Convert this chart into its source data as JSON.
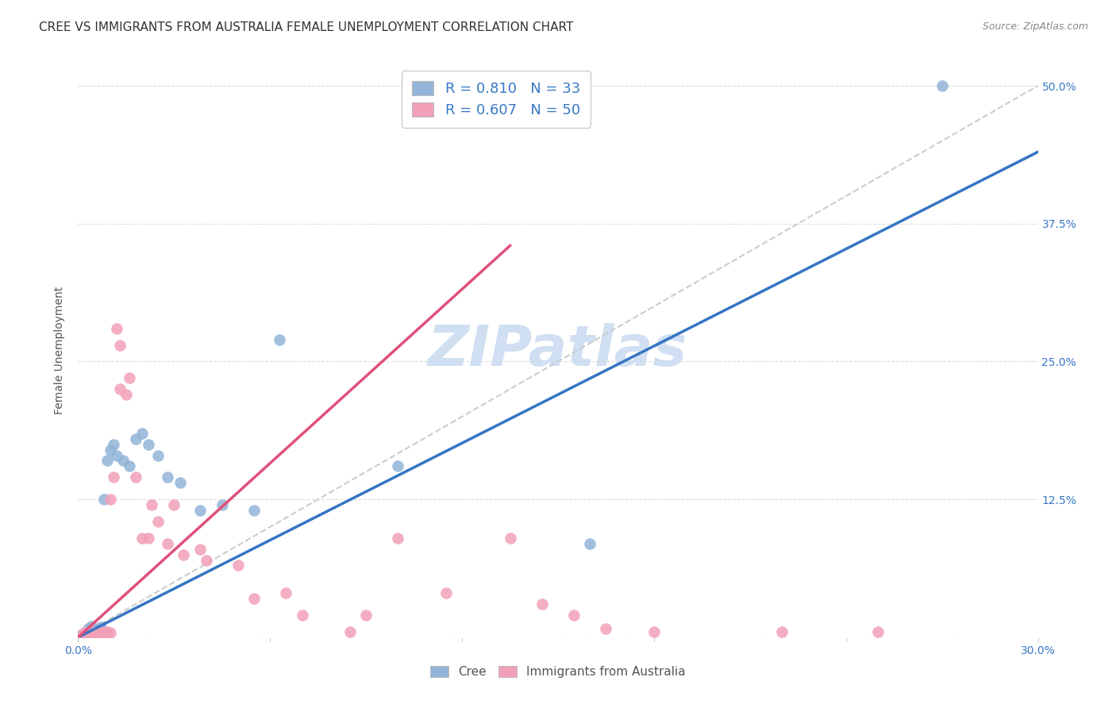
{
  "title": "CREE VS IMMIGRANTS FROM AUSTRALIA FEMALE UNEMPLOYMENT CORRELATION CHART",
  "source": "Source: ZipAtlas.com",
  "ylabel_label": "Female Unemployment",
  "x_min": 0.0,
  "x_max": 0.3,
  "y_min": 0.0,
  "y_max": 0.52,
  "x_ticks": [
    0.0,
    0.06,
    0.12,
    0.18,
    0.24,
    0.3
  ],
  "x_tick_labels": [
    "0.0%",
    "",
    "",
    "",
    "",
    "30.0%"
  ],
  "y_ticks": [
    0.0,
    0.125,
    0.25,
    0.375,
    0.5
  ],
  "y_tick_labels": [
    "",
    "12.5%",
    "25.0%",
    "37.5%",
    "50.0%"
  ],
  "cree_color": "#92b4d8",
  "australia_color": "#f2a0b8",
  "cree_line_color": "#3575c3",
  "australia_line_color": "#e0507a",
  "diagonal_color": "#cccccc",
  "watermark_color": "#c8daf0",
  "R_cree": "0.810",
  "N_cree": 33,
  "R_australia": "0.607",
  "N_australia": 50,
  "cree_line": [
    [
      0.0,
      0.0
    ],
    [
      0.3,
      0.44
    ]
  ],
  "australia_line": [
    [
      0.0,
      0.0
    ],
    [
      0.135,
      0.355
    ]
  ],
  "diagonal_line": [
    [
      0.0,
      0.0
    ],
    [
      0.3,
      0.5
    ]
  ],
  "cree_points": [
    [
      0.001,
      0.002
    ],
    [
      0.002,
      0.003
    ],
    [
      0.002,
      0.001
    ],
    [
      0.003,
      0.005
    ],
    [
      0.003,
      0.008
    ],
    [
      0.004,
      0.003
    ],
    [
      0.004,
      0.01
    ],
    [
      0.005,
      0.005
    ],
    [
      0.005,
      0.002
    ],
    [
      0.006,
      0.004
    ],
    [
      0.006,
      0.007
    ],
    [
      0.007,
      0.003
    ],
    [
      0.007,
      0.009
    ],
    [
      0.008,
      0.125
    ],
    [
      0.009,
      0.16
    ],
    [
      0.01,
      0.17
    ],
    [
      0.011,
      0.175
    ],
    [
      0.012,
      0.165
    ],
    [
      0.014,
      0.16
    ],
    [
      0.016,
      0.155
    ],
    [
      0.018,
      0.18
    ],
    [
      0.02,
      0.185
    ],
    [
      0.022,
      0.175
    ],
    [
      0.025,
      0.165
    ],
    [
      0.028,
      0.145
    ],
    [
      0.032,
      0.14
    ],
    [
      0.038,
      0.115
    ],
    [
      0.045,
      0.12
    ],
    [
      0.055,
      0.115
    ],
    [
      0.063,
      0.27
    ],
    [
      0.1,
      0.155
    ],
    [
      0.16,
      0.085
    ],
    [
      0.27,
      0.5
    ]
  ],
  "australia_points": [
    [
      0.001,
      0.001
    ],
    [
      0.002,
      0.002
    ],
    [
      0.002,
      0.004
    ],
    [
      0.003,
      0.001
    ],
    [
      0.003,
      0.003
    ],
    [
      0.004,
      0.002
    ],
    [
      0.004,
      0.001
    ],
    [
      0.005,
      0.003
    ],
    [
      0.005,
      0.005
    ],
    [
      0.006,
      0.002
    ],
    [
      0.006,
      0.004
    ],
    [
      0.007,
      0.003
    ],
    [
      0.007,
      0.005
    ],
    [
      0.008,
      0.002
    ],
    [
      0.008,
      0.004
    ],
    [
      0.009,
      0.003
    ],
    [
      0.009,
      0.005
    ],
    [
      0.01,
      0.004
    ],
    [
      0.01,
      0.125
    ],
    [
      0.011,
      0.145
    ],
    [
      0.012,
      0.28
    ],
    [
      0.013,
      0.265
    ],
    [
      0.013,
      0.225
    ],
    [
      0.015,
      0.22
    ],
    [
      0.016,
      0.235
    ],
    [
      0.018,
      0.145
    ],
    [
      0.02,
      0.09
    ],
    [
      0.022,
      0.09
    ],
    [
      0.023,
      0.12
    ],
    [
      0.025,
      0.105
    ],
    [
      0.028,
      0.085
    ],
    [
      0.03,
      0.12
    ],
    [
      0.033,
      0.075
    ],
    [
      0.038,
      0.08
    ],
    [
      0.04,
      0.07
    ],
    [
      0.05,
      0.065
    ],
    [
      0.055,
      0.035
    ],
    [
      0.065,
      0.04
    ],
    [
      0.07,
      0.02
    ],
    [
      0.085,
      0.005
    ],
    [
      0.09,
      0.02
    ],
    [
      0.1,
      0.09
    ],
    [
      0.115,
      0.04
    ],
    [
      0.135,
      0.09
    ],
    [
      0.145,
      0.03
    ],
    [
      0.155,
      0.02
    ],
    [
      0.165,
      0.008
    ],
    [
      0.18,
      0.005
    ],
    [
      0.22,
      0.005
    ],
    [
      0.25,
      0.005
    ]
  ],
  "background_color": "#ffffff",
  "grid_color": "#dddddd",
  "title_fontsize": 11,
  "axis_label_fontsize": 10,
  "tick_fontsize": 10,
  "legend_fontsize": 13
}
